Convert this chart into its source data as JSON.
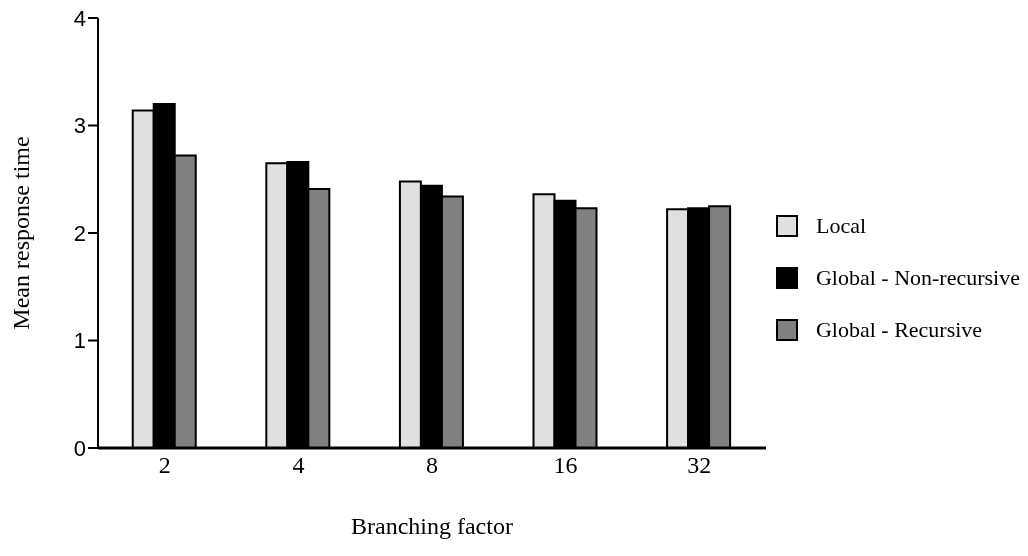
{
  "chart_data": {
    "type": "bar",
    "xlabel": "Branching factor",
    "ylabel": "Mean response time",
    "categories": [
      "2",
      "4",
      "8",
      "16",
      "32"
    ],
    "series": [
      {
        "name": "Local",
        "color": "#e0e0e0",
        "values": [
          3.14,
          2.65,
          2.48,
          2.36,
          2.22
        ]
      },
      {
        "name": "Global - Non-recursive",
        "color": "#000000",
        "values": [
          3.2,
          2.66,
          2.44,
          2.3,
          2.23
        ]
      },
      {
        "name": "Global - Recursive",
        "color": "#808080",
        "values": [
          2.72,
          2.41,
          2.34,
          2.23,
          2.25
        ]
      }
    ],
    "ylim": [
      0,
      4
    ],
    "yticks": [
      0,
      1,
      2,
      3,
      4
    ],
    "grid": false,
    "legend": "right"
  }
}
